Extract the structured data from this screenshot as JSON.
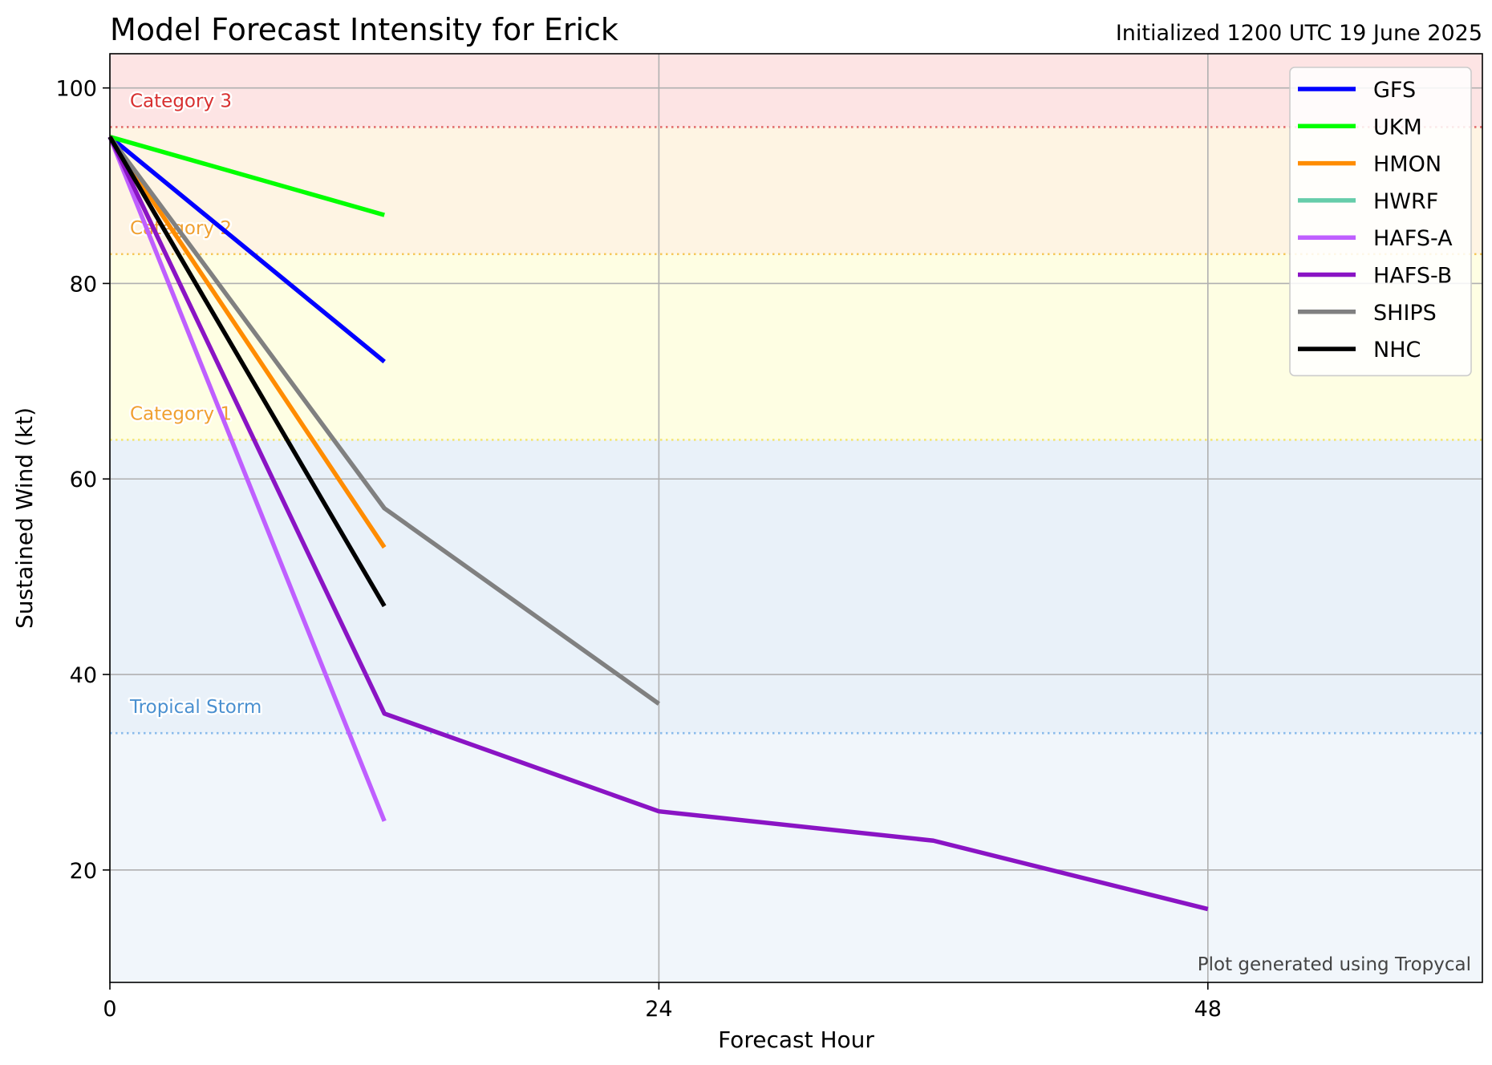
{
  "chart_data": {
    "type": "line",
    "title": "Model Forecast Intensity for Erick",
    "subtitle": "Initialized 1200 UTC 19 June 2025",
    "xlabel": "Forecast Hour",
    "ylabel": "Sustained Wind (kt)",
    "xlim": [
      0,
      60
    ],
    "ylim": [
      8.5,
      103.5
    ],
    "xticks": [
      0,
      24,
      48
    ],
    "yticks": [
      20,
      40,
      60,
      80,
      100
    ],
    "grid": true,
    "legend_position": "top-right",
    "credit": "Plot generated using Tropycal",
    "bands": [
      {
        "label": "",
        "y0": 8.5,
        "y1": 34,
        "color": "#f1f6fb"
      },
      {
        "label": "Tropical Storm",
        "y0": 34,
        "y1": 64,
        "color": "#e9f1f9",
        "line_color": "#7fb5ea",
        "label_color": "#4a90d0"
      },
      {
        "label": "Category 1",
        "y0": 64,
        "y1": 83,
        "color": "#fefee3",
        "line_color": "#f3e46a",
        "label_color": "#f0a030"
      },
      {
        "label": "Category 2",
        "y0": 83,
        "y1": 96,
        "color": "#fef4e3",
        "line_color": "#f5c24a",
        "label_color": "#f0a030"
      },
      {
        "label": "Category 3",
        "y0": 96,
        "y1": 103.5,
        "color": "#fde4e4",
        "line_color": "#e06060",
        "label_color": "#d83030"
      }
    ],
    "series": [
      {
        "name": "GFS",
        "color": "#0000ff",
        "x": [
          0,
          12
        ],
        "y": [
          95,
          72
        ]
      },
      {
        "name": "UKM",
        "color": "#00ff00",
        "x": [
          0,
          12
        ],
        "y": [
          95,
          87
        ]
      },
      {
        "name": "HMON",
        "color": "#ff8c00",
        "x": [
          0,
          12
        ],
        "y": [
          95,
          53
        ]
      },
      {
        "name": "HWRF",
        "color": "#66cdaa",
        "x": [
          0
        ],
        "y": [
          95
        ]
      },
      {
        "name": "HAFS-A",
        "color": "#bf5fff",
        "x": [
          0,
          12
        ],
        "y": [
          95,
          25
        ]
      },
      {
        "name": "HAFS-B",
        "color": "#8a14c4",
        "x": [
          0,
          12,
          24,
          36,
          48
        ],
        "y": [
          95,
          36,
          26,
          23,
          16
        ]
      },
      {
        "name": "SHIPS",
        "color": "#808080",
        "x": [
          0,
          12,
          24
        ],
        "y": [
          95,
          57,
          37
        ]
      },
      {
        "name": "NHC",
        "color": "#000000",
        "x": [
          0,
          12
        ],
        "y": [
          95,
          47
        ]
      }
    ]
  }
}
